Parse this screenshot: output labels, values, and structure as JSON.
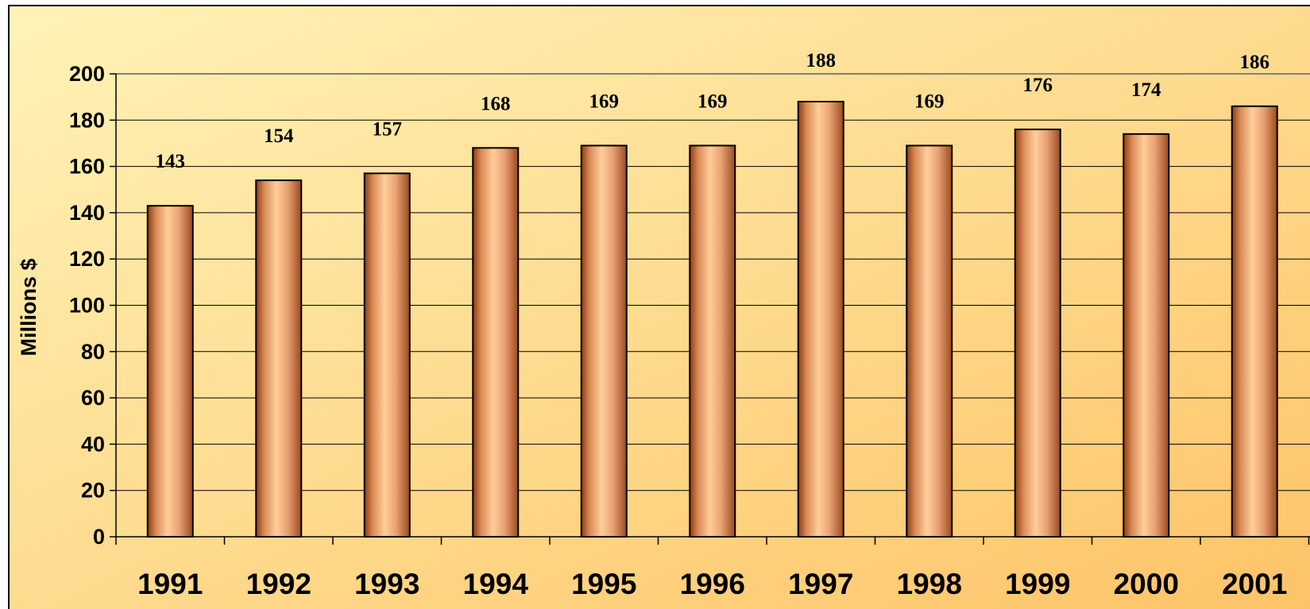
{
  "chart_data": {
    "type": "bar",
    "title": "",
    "xlabel": "",
    "ylabel": "Millions $",
    "categories": [
      "1991",
      "1992",
      "1993",
      "1994",
      "1995",
      "1996",
      "1997",
      "1998",
      "1999",
      "2000",
      "2001"
    ],
    "values": [
      143,
      154,
      157,
      168,
      169,
      169,
      188,
      169,
      176,
      174,
      186
    ],
    "data_labels": [
      "143",
      "154",
      "157",
      "168",
      "169",
      "169",
      "188",
      "169",
      "176",
      "174",
      "186"
    ],
    "ylim": [
      0,
      200
    ],
    "y_ticks": [
      0,
      20,
      40,
      60,
      80,
      100,
      120,
      140,
      160,
      180,
      200
    ],
    "grid": true,
    "legend": "none",
    "colors": {
      "background_light": "#FFF3B8",
      "background_dark": "#FDC366",
      "bar_edge": "#8B3A12",
      "bar_mid": "#FFCE9A",
      "bar_dark": "#9A4A20",
      "outline": "#000000",
      "plot_border": "#808080"
    }
  }
}
